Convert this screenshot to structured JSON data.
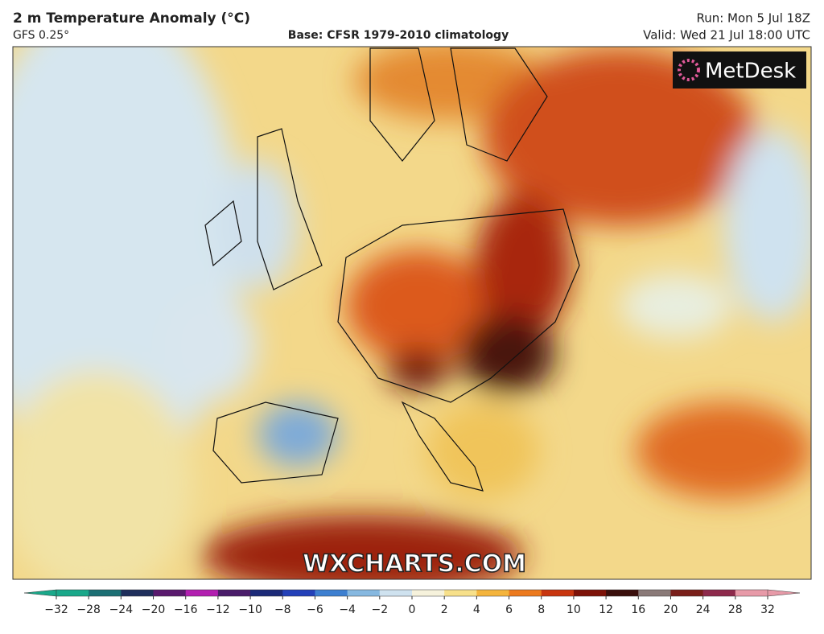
{
  "header": {
    "title": "2 m Temperature Anomaly (°C)",
    "model": "GFS 0.25°",
    "base": "Base: CFSR 1979-2010 climatology",
    "run": "Run: Mon 5 Jul 18Z",
    "valid": "Valid: Wed 21 Jul 18:00 UTC"
  },
  "logo": "MetDesk",
  "watermark": "WXCHARTS.COM",
  "colorbar": {
    "ticks": [
      {
        "value": -32,
        "label": "−32"
      },
      {
        "value": -28,
        "label": "−28"
      },
      {
        "value": -24,
        "label": "−24"
      },
      {
        "value": -20,
        "label": "−20"
      },
      {
        "value": -16,
        "label": "−16"
      },
      {
        "value": -12,
        "label": "−12"
      },
      {
        "value": -10,
        "label": "−10"
      },
      {
        "value": -8,
        "label": "−8"
      },
      {
        "value": -6,
        "label": "−6"
      },
      {
        "value": -4,
        "label": "−4"
      },
      {
        "value": -2,
        "label": "−2"
      },
      0,
      2,
      4,
      6,
      8,
      10,
      12,
      16,
      20,
      24,
      28,
      32
    ],
    "colors": [
      "#1aa88a",
      "#1c6f74",
      "#1f2f5c",
      "#5a1a6e",
      "#b21fb0",
      "#4a1d6a",
      "#1c2a78",
      "#2340b8",
      "#3d7fd0",
      "#86b8e0",
      "#cfe2ef",
      "#f6f2dc",
      "#f7e08a",
      "#f4b43c",
      "#ec7a1e",
      "#c8360f",
      "#7d1208",
      "#3a0f0c",
      "#8a7a78",
      "#7a1f1a",
      "#8e2a4c",
      "#e79aa8"
    ]
  }
}
